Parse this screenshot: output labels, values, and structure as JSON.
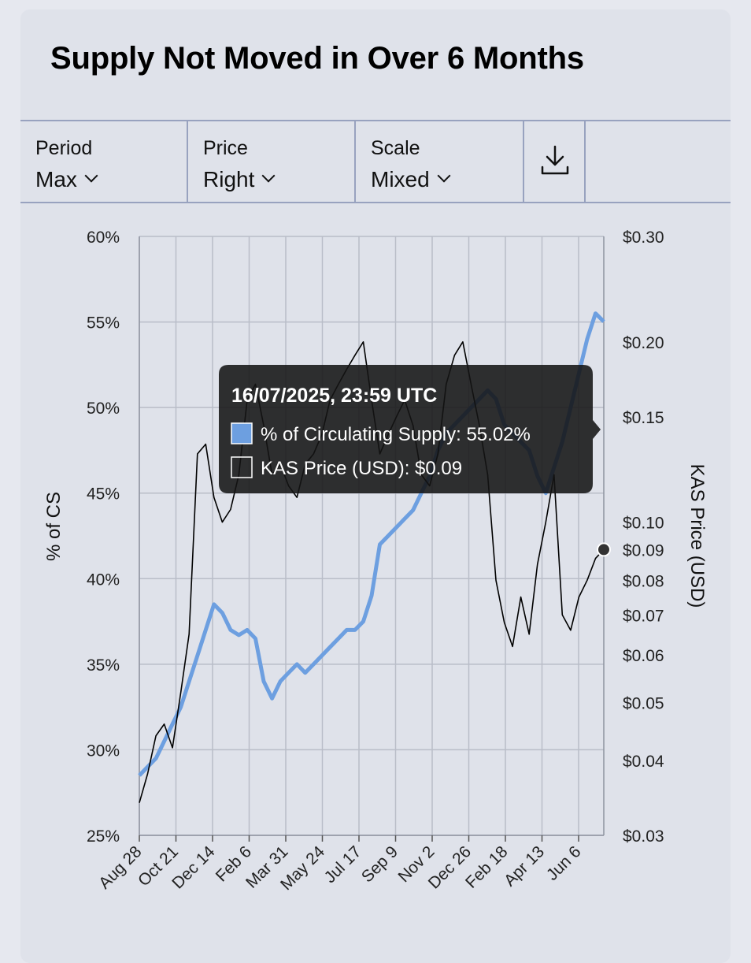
{
  "header": {
    "title": "Supply Not Moved in Over 6 Months"
  },
  "toolbar": {
    "period": {
      "label": "Period",
      "value": "Max"
    },
    "price": {
      "label": "Price",
      "value": "Right"
    },
    "scale": {
      "label": "Scale",
      "value": "Mixed"
    },
    "download_icon": "download-icon"
  },
  "chart_data": {
    "type": "line",
    "left_axis": {
      "label": "% of CS",
      "min": 25,
      "max": 60,
      "ticks": [
        "25%",
        "30%",
        "35%",
        "40%",
        "45%",
        "50%",
        "55%",
        "60%"
      ]
    },
    "right_axis": {
      "label": "KAS Price (USD)",
      "scale": "log",
      "min": 0.03,
      "max": 0.3,
      "ticks": [
        "$0.03",
        "$0.04",
        "$0.05",
        "$0.06",
        "$0.07",
        "$0.08",
        "$0.09",
        "$0.10",
        "$0.15",
        "$0.20",
        "$0.30"
      ]
    },
    "x_ticks": [
      "Aug 28",
      "Oct 21",
      "Dec 14",
      "Feb 6",
      "Mar 31",
      "May 24",
      "Jul 17",
      "Sep 9",
      "Nov 2",
      "Dec 26",
      "Feb 18",
      "Apr 13",
      "Jun 6"
    ],
    "grid": true,
    "series": [
      {
        "name": "% of Circulating Supply",
        "color": "#6d9fe0",
        "axis": "left",
        "values": [
          28.5,
          29.0,
          29.5,
          30.5,
          31.5,
          32.5,
          34.0,
          35.5,
          37.0,
          38.5,
          38.0,
          37.0,
          36.7,
          37.0,
          36.5,
          34.0,
          33.0,
          34.0,
          34.5,
          35.0,
          34.5,
          35.0,
          35.5,
          36.0,
          36.5,
          37.0,
          37.0,
          37.5,
          39.0,
          42.0,
          42.5,
          43.0,
          43.5,
          44.0,
          45.0,
          46.0,
          47.5,
          48.5,
          49.0,
          49.5,
          50.0,
          50.5,
          51.0,
          50.5,
          49.0,
          48.5,
          48.0,
          47.5,
          46.0,
          45.0,
          46.5,
          48.0,
          50.0,
          52.0,
          54.0,
          55.5,
          55.02
        ]
      },
      {
        "name": "KAS Price (USD)",
        "color": "#000000",
        "axis": "right",
        "values": [
          0.034,
          0.038,
          0.044,
          0.046,
          0.042,
          0.052,
          0.065,
          0.13,
          0.135,
          0.11,
          0.1,
          0.105,
          0.12,
          0.16,
          0.17,
          0.145,
          0.12,
          0.125,
          0.115,
          0.11,
          0.125,
          0.13,
          0.14,
          0.16,
          0.17,
          0.18,
          0.19,
          0.2,
          0.16,
          0.13,
          0.14,
          0.15,
          0.16,
          0.145,
          0.12,
          0.115,
          0.13,
          0.17,
          0.19,
          0.2,
          0.17,
          0.145,
          0.12,
          0.08,
          0.068,
          0.062,
          0.075,
          0.065,
          0.085,
          0.1,
          0.12,
          0.07,
          0.066,
          0.075,
          0.08,
          0.087,
          0.09
        ]
      }
    ],
    "tooltip": {
      "title": "16/07/2025, 23:59 UTC",
      "rows": [
        {
          "label": "% of Circulating Supply: 55.02%",
          "color": "#6d9fe0"
        },
        {
          "label": "KAS Price (USD): $0.09",
          "color": "#ffffff"
        }
      ]
    }
  }
}
